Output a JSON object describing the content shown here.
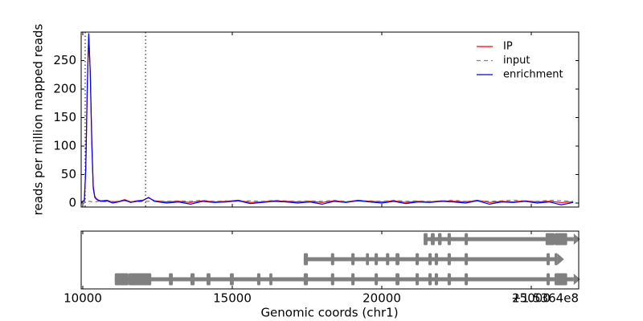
{
  "chart_data": [
    {
      "type": "line",
      "ylabel": "reads per million mapped reads",
      "xlim": [
        9946,
        26586
      ],
      "ylim": [
        -7,
        300
      ],
      "yticks": [
        0,
        50,
        100,
        150,
        200,
        250
      ],
      "vlines": [
        10080,
        12100
      ],
      "legend": "upper right",
      "x": [
        9950,
        10050,
        10100,
        10150,
        10200,
        10250,
        10300,
        10350,
        10400,
        10450,
        10500,
        10600,
        10800,
        11000,
        11200,
        11400,
        11600,
        11800,
        12000,
        12200,
        12400,
        12800,
        13200,
        13600,
        14000,
        14400,
        14800,
        15200,
        15600,
        16000,
        16400,
        16800,
        17200,
        17600,
        18000,
        18400,
        18800,
        19200,
        19600,
        20000,
        20400,
        20800,
        21200,
        21600,
        22000,
        22400,
        22800,
        23200,
        23600,
        24000,
        24400,
        24800,
        25200,
        25600,
        26000,
        26400
      ],
      "series": [
        {
          "name": "IP",
          "color": "#ff0000",
          "dash": false,
          "values": [
            2,
            5,
            60,
            200,
            295,
            230,
            110,
            30,
            12,
            8,
            6,
            4,
            5,
            2,
            3,
            6,
            2,
            4,
            5,
            9,
            4,
            2,
            3,
            1,
            4,
            2,
            3,
            5,
            1,
            2,
            4,
            3,
            2,
            3,
            1,
            4,
            2,
            5,
            3,
            2,
            4,
            1,
            3,
            2,
            4,
            3,
            2,
            5,
            1,
            3,
            2,
            4,
            2,
            3,
            1,
            2
          ]
        },
        {
          "name": "input",
          "color": "#808080",
          "dash": true,
          "values": [
            3,
            3,
            3,
            2,
            3,
            3,
            2,
            3,
            3,
            2,
            3,
            3,
            2,
            3,
            3,
            4,
            3,
            2,
            3,
            3,
            4,
            3,
            4,
            3,
            5,
            3,
            4,
            3,
            4,
            3,
            5,
            4,
            3,
            4,
            3,
            5,
            3,
            4,
            4,
            3,
            5,
            3,
            4,
            3,
            4,
            5,
            3,
            4,
            3,
            4,
            5,
            4,
            3,
            5,
            4,
            3
          ]
        },
        {
          "name": "enrichment",
          "color": "#0000ff",
          "dash": false,
          "values": [
            1,
            4,
            58,
            205,
            298,
            228,
            105,
            26,
            10,
            7,
            5,
            3,
            4,
            0,
            2,
            5,
            1,
            3,
            4,
            10,
            3,
            0,
            2,
            -2,
            3,
            1,
            2,
            4,
            -1,
            1,
            3,
            2,
            0,
            2,
            -2,
            3,
            1,
            4,
            2,
            0,
            3,
            -1,
            2,
            1,
            3,
            2,
            0,
            4,
            -2,
            2,
            1,
            3,
            0,
            2,
            -3,
            1
          ]
        }
      ]
    },
    {
      "type": "gene",
      "xlabel": "Genomic coords (chr1)",
      "offset_label": "+1.5364e8",
      "xlim": [
        9946,
        26586
      ],
      "xticks": [
        10000,
        15000,
        20000,
        25000
      ],
      "color": "#808080",
      "transcripts": [
        {
          "start": 21400,
          "end": 26420,
          "exons": [
            [
              21400,
              21530
            ],
            [
              21640,
              21770
            ],
            [
              21880,
              22000
            ],
            [
              22200,
              22310
            ],
            [
              22770,
              22880
            ],
            [
              25480,
              25780
            ],
            [
              25780,
              26200
            ]
          ]
        },
        {
          "start": 17390,
          "end": 25880,
          "exons": [
            [
              17390,
              17530
            ],
            [
              18300,
              18410
            ],
            [
              18980,
              19090
            ],
            [
              19470,
              19570
            ],
            [
              19760,
              19870
            ],
            [
              20140,
              20250
            ],
            [
              20460,
              20590
            ],
            [
              21130,
              21240
            ],
            [
              21560,
              21670
            ],
            [
              21770,
              21880
            ],
            [
              22200,
              22310
            ],
            [
              22770,
              22880
            ],
            [
              25510,
              25620
            ],
            [
              25780,
              25880
            ]
          ]
        },
        {
          "start": 11070,
          "end": 26420,
          "exons": [
            [
              11070,
              11530
            ],
            [
              11530,
              12290
            ],
            [
              12880,
              13010
            ],
            [
              13600,
              13740
            ],
            [
              14140,
              14270
            ],
            [
              14920,
              15050
            ],
            [
              15830,
              15940
            ],
            [
              16240,
              16340
            ],
            [
              17390,
              17530
            ],
            [
              18300,
              18410
            ],
            [
              18980,
              19090
            ],
            [
              19760,
              19870
            ],
            [
              20460,
              20590
            ],
            [
              21130,
              21240
            ],
            [
              21560,
              21670
            ],
            [
              21770,
              21880
            ],
            [
              22200,
              22310
            ],
            [
              22770,
              22880
            ],
            [
              25510,
              25620
            ],
            [
              25780,
              26200
            ]
          ]
        }
      ]
    }
  ]
}
